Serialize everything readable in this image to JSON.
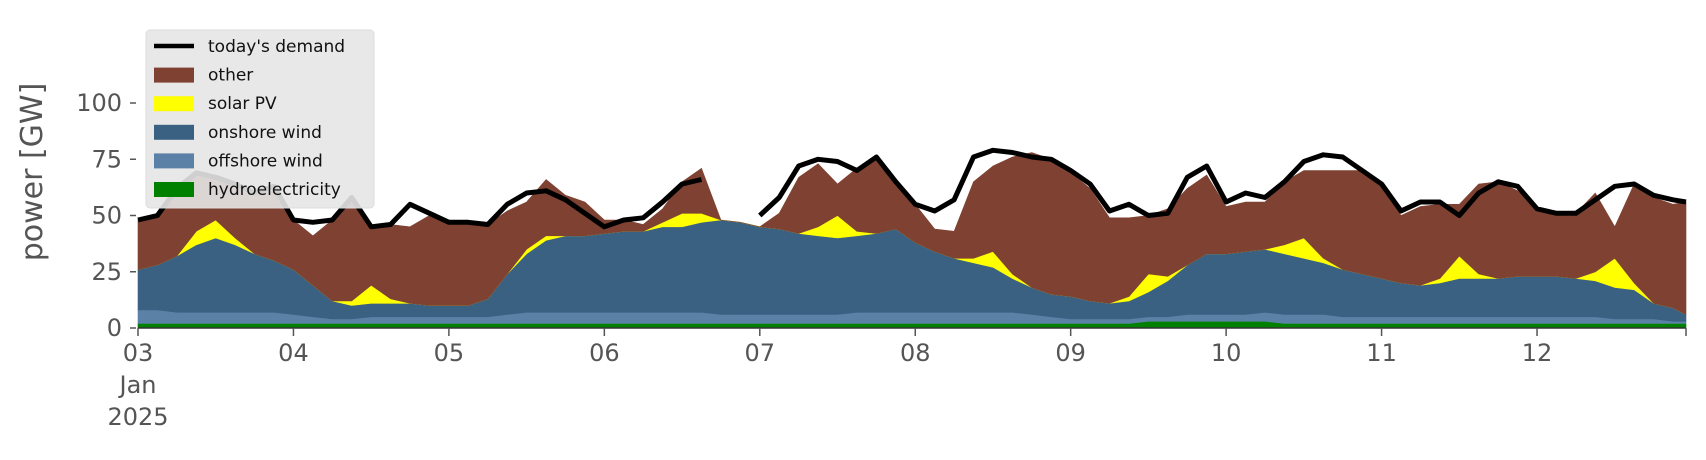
{
  "chart_data": {
    "type": "area",
    "ylabel": "power [GW]",
    "ylim": [
      0,
      120
    ],
    "yticks": [
      0,
      25,
      50,
      75,
      100
    ],
    "xlim": [
      "2025-01-03T00:00",
      "2025-01-12T23:00"
    ],
    "xticks": [
      {
        "x": "2025-01-03",
        "label": "03",
        "sub1": "Jan",
        "sub2": "2025"
      },
      {
        "x": "2025-01-04",
        "label": "04"
      },
      {
        "x": "2025-01-05",
        "label": "05"
      },
      {
        "x": "2025-01-06",
        "label": "06"
      },
      {
        "x": "2025-01-07",
        "label": "07"
      },
      {
        "x": "2025-01-08",
        "label": "08"
      },
      {
        "x": "2025-01-09",
        "label": "09"
      },
      {
        "x": "2025-01-10",
        "label": "10"
      },
      {
        "x": "2025-01-11",
        "label": "11"
      },
      {
        "x": "2025-01-12",
        "label": "12"
      }
    ],
    "legend_position": "top-left",
    "legend": [
      "today's demand",
      "other",
      "solar PV",
      "onshore wind",
      "offshore wind",
      "hydroelectricity"
    ],
    "x": [
      "2025-01-03T00:00",
      "2025-01-03T03:00",
      "2025-01-03T06:00",
      "2025-01-03T09:00",
      "2025-01-03T12:00",
      "2025-01-03T15:00",
      "2025-01-03T18:00",
      "2025-01-03T21:00",
      "2025-01-04T00:00",
      "2025-01-04T03:00",
      "2025-01-04T06:00",
      "2025-01-04T09:00",
      "2025-01-04T12:00",
      "2025-01-04T15:00",
      "2025-01-04T18:00",
      "2025-01-04T21:00",
      "2025-01-05T00:00",
      "2025-01-05T03:00",
      "2025-01-05T06:00",
      "2025-01-05T09:00",
      "2025-01-05T12:00",
      "2025-01-05T15:00",
      "2025-01-05T18:00",
      "2025-01-05T21:00",
      "2025-01-06T00:00",
      "2025-01-06T03:00",
      "2025-01-06T06:00",
      "2025-01-06T09:00",
      "2025-01-06T12:00",
      "2025-01-06T15:00",
      "2025-01-06T18:00",
      "2025-01-06T21:00",
      "2025-01-07T00:00",
      "2025-01-07T03:00",
      "2025-01-07T06:00",
      "2025-01-07T09:00",
      "2025-01-07T12:00",
      "2025-01-07T15:00",
      "2025-01-07T18:00",
      "2025-01-07T21:00",
      "2025-01-08T00:00",
      "2025-01-08T03:00",
      "2025-01-08T06:00",
      "2025-01-08T09:00",
      "2025-01-08T12:00",
      "2025-01-08T15:00",
      "2025-01-08T18:00",
      "2025-01-08T21:00",
      "2025-01-09T00:00",
      "2025-01-09T03:00",
      "2025-01-09T06:00",
      "2025-01-09T09:00",
      "2025-01-09T12:00",
      "2025-01-09T15:00",
      "2025-01-09T18:00",
      "2025-01-09T21:00",
      "2025-01-10T00:00",
      "2025-01-10T03:00",
      "2025-01-10T06:00",
      "2025-01-10T09:00",
      "2025-01-10T12:00",
      "2025-01-10T15:00",
      "2025-01-10T18:00",
      "2025-01-10T21:00",
      "2025-01-11T00:00",
      "2025-01-11T03:00",
      "2025-01-11T06:00",
      "2025-01-11T09:00",
      "2025-01-11T12:00",
      "2025-01-11T15:00",
      "2025-01-11T18:00",
      "2025-01-11T21:00",
      "2025-01-12T00:00",
      "2025-01-12T03:00",
      "2025-01-12T06:00",
      "2025-01-12T09:00",
      "2025-01-12T12:00",
      "2025-01-12T15:00",
      "2025-01-12T18:00",
      "2025-01-12T21:00",
      "2025-01-12T23:00"
    ],
    "series": [
      {
        "name": "hydroelectricity",
        "color": "#008000",
        "values": [
          2,
          2,
          2,
          2,
          2,
          2,
          2,
          2,
          2,
          2,
          2,
          2,
          2,
          2,
          2,
          2,
          2,
          2,
          2,
          2,
          2,
          2,
          2,
          2,
          2,
          2,
          2,
          2,
          2,
          2,
          2,
          2,
          2,
          2,
          2,
          2,
          2,
          2,
          2,
          2,
          2,
          2,
          2,
          2,
          2,
          2,
          2,
          2,
          2,
          2,
          2,
          2,
          3,
          3,
          3,
          3,
          3,
          3,
          3,
          2,
          2,
          2,
          2,
          2,
          2,
          2,
          2,
          2,
          2,
          2,
          2,
          2,
          2,
          2,
          2,
          2,
          2,
          2,
          2,
          2,
          2
        ]
      },
      {
        "name": "offshore wind",
        "color": "#5b82a6",
        "values": [
          6,
          6,
          5,
          5,
          5,
          5,
          5,
          5,
          4,
          3,
          2,
          2,
          3,
          3,
          3,
          3,
          3,
          3,
          3,
          4,
          5,
          5,
          5,
          5,
          5,
          5,
          5,
          5,
          5,
          5,
          4,
          4,
          4,
          4,
          4,
          4,
          4,
          5,
          5,
          5,
          5,
          5,
          5,
          5,
          5,
          5,
          4,
          3,
          2,
          2,
          2,
          2,
          2,
          2,
          3,
          3,
          3,
          3,
          4,
          4,
          4,
          4,
          3,
          3,
          3,
          3,
          3,
          3,
          3,
          3,
          3,
          3,
          3,
          3,
          3,
          3,
          2,
          2,
          2,
          1,
          1
        ]
      },
      {
        "name": "onshore wind",
        "color": "#3b6182",
        "values": [
          18,
          20,
          25,
          30,
          33,
          30,
          26,
          23,
          20,
          14,
          8,
          6,
          6,
          6,
          6,
          5,
          5,
          5,
          8,
          18,
          26,
          32,
          34,
          34,
          35,
          36,
          36,
          38,
          38,
          40,
          42,
          41,
          39,
          38,
          36,
          35,
          34,
          34,
          35,
          37,
          31,
          27,
          24,
          22,
          20,
          15,
          12,
          10,
          10,
          8,
          7,
          8,
          11,
          16,
          22,
          27,
          27,
          28,
          28,
          27,
          25,
          23,
          21,
          19,
          17,
          15,
          14,
          15,
          17,
          17,
          17,
          18,
          18,
          18,
          17,
          16,
          14,
          13,
          7,
          6,
          3
        ]
      },
      {
        "name": "solar PV",
        "color": "#ffff00",
        "values": [
          0,
          0,
          0,
          6,
          8,
          3,
          0,
          0,
          0,
          0,
          0,
          2,
          8,
          2,
          0,
          0,
          0,
          0,
          0,
          0,
          2,
          2,
          0,
          0,
          0,
          0,
          0,
          2,
          6,
          4,
          0,
          0,
          0,
          0,
          0,
          4,
          10,
          2,
          0,
          0,
          0,
          0,
          0,
          2,
          7,
          2,
          0,
          0,
          0,
          0,
          0,
          2,
          8,
          2,
          0,
          0,
          0,
          0,
          0,
          4,
          9,
          2,
          0,
          0,
          0,
          0,
          0,
          2,
          10,
          2,
          0,
          0,
          0,
          0,
          0,
          4,
          13,
          3,
          0,
          0,
          0
        ]
      },
      {
        "name": "other",
        "color": "#7f4232",
        "values": [
          22,
          22,
          30,
          26,
          19,
          24,
          27,
          31,
          22,
          22,
          36,
          46,
          26,
          33,
          34,
          40,
          38,
          37,
          33,
          28,
          21,
          25,
          18,
          15,
          6,
          5,
          3,
          6,
          14,
          20,
          0,
          0,
          0,
          7,
          25,
          28,
          14,
          28,
          34,
          21,
          17,
          10,
          12,
          34,
          38,
          52,
          60,
          60,
          55,
          50,
          38,
          35,
          26,
          30,
          34,
          35,
          21,
          22,
          21,
          28,
          30,
          39,
          44,
          46,
          42,
          30,
          35,
          33,
          23,
          40,
          43,
          38,
          30,
          28,
          29,
          35,
          14,
          44,
          47,
          46,
          50
        ]
      },
      {
        "name": "today's demand",
        "type": "line",
        "color": "#000000",
        "values": [
          48,
          50,
          62,
          69,
          67,
          64,
          60,
          63,
          48,
          47,
          48,
          58,
          45,
          46,
          55,
          51,
          47,
          47,
          46,
          55,
          60,
          61,
          57,
          51,
          45,
          48,
          49,
          56,
          64,
          66,
          null,
          null,
          50,
          58,
          72,
          75,
          74,
          70,
          76,
          65,
          55,
          52,
          57,
          76,
          79,
          78,
          76,
          75,
          70,
          64,
          52,
          55,
          50,
          51,
          67,
          72,
          56,
          60,
          58,
          65,
          74,
          77,
          76,
          70,
          64,
          52,
          56,
          56,
          50,
          60,
          65,
          63,
          53,
          51,
          51,
          57,
          63,
          64,
          59,
          57,
          56
        ]
      }
    ]
  }
}
